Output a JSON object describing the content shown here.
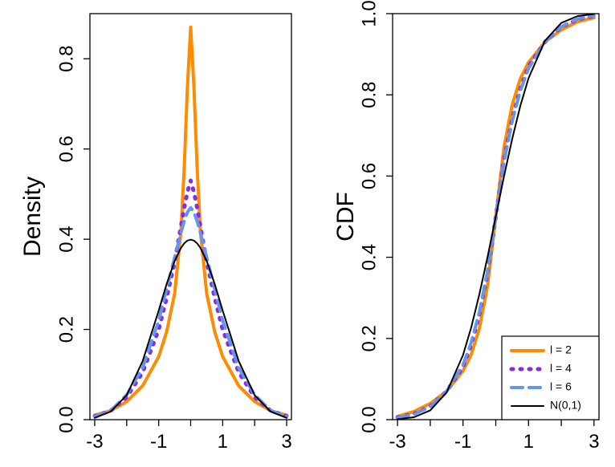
{
  "chart_data": [
    {
      "type": "line",
      "title": "",
      "xlabel": "",
      "ylabel": "Density",
      "xlim": [
        -3.15,
        3.15
      ],
      "ylim": [
        0,
        0.9
      ],
      "xticks": [
        -3,
        -2,
        -1,
        0,
        1,
        2,
        3
      ],
      "xtick_labels": [
        "-3",
        "",
        "-1",
        "",
        "1",
        "",
        "3"
      ],
      "yticks": [
        0.0,
        0.2,
        0.4,
        0.6,
        0.8
      ],
      "ytick_labels": [
        "0.0",
        "0.2",
        "0.4",
        "0.6",
        "0.8"
      ],
      "grid": false,
      "x": [
        -3,
        -2.5,
        -2,
        -1.5,
        -1,
        -0.75,
        -0.5,
        -0.3,
        -0.2,
        -0.1,
        0,
        0.1,
        0.2,
        0.3,
        0.5,
        0.75,
        1,
        1.5,
        2,
        2.5,
        3
      ],
      "series": [
        {
          "name": "l = 2",
          "color": "#FF8C00",
          "dash": "solid",
          "width": 4,
          "values": [
            0.01,
            0.02,
            0.04,
            0.075,
            0.14,
            0.195,
            0.28,
            0.42,
            0.56,
            0.74,
            0.87,
            0.74,
            0.56,
            0.42,
            0.28,
            0.195,
            0.14,
            0.075,
            0.04,
            0.02,
            0.01
          ]
        },
        {
          "name": "l = 4",
          "color": "#8A2BE2",
          "dash": "dotted",
          "width": 5,
          "values": [
            0.008,
            0.02,
            0.05,
            0.105,
            0.2,
            0.27,
            0.35,
            0.43,
            0.47,
            0.505,
            0.53,
            0.505,
            0.47,
            0.43,
            0.35,
            0.27,
            0.2,
            0.105,
            0.05,
            0.02,
            0.008
          ]
        },
        {
          "name": "l = 6",
          "color": "#6495ED",
          "dash": "dashed",
          "width": 4,
          "values": [
            0.007,
            0.02,
            0.055,
            0.115,
            0.22,
            0.29,
            0.36,
            0.415,
            0.44,
            0.46,
            0.47,
            0.46,
            0.44,
            0.415,
            0.36,
            0.29,
            0.22,
            0.115,
            0.055,
            0.02,
            0.007
          ]
        },
        {
          "name": "N(0,1)",
          "color": "#000000",
          "dash": "solid",
          "width": 2,
          "values": [
            0.004,
            0.018,
            0.054,
            0.13,
            0.242,
            0.301,
            0.352,
            0.381,
            0.391,
            0.397,
            0.399,
            0.397,
            0.391,
            0.381,
            0.352,
            0.301,
            0.242,
            0.13,
            0.054,
            0.018,
            0.004
          ]
        }
      ]
    },
    {
      "type": "line",
      "title": "",
      "xlabel": "",
      "ylabel": "CDF",
      "xlim": [
        -3.15,
        3.15
      ],
      "ylim": [
        0,
        1.0
      ],
      "xticks": [
        -3,
        -2,
        -1,
        0,
        1,
        2,
        3
      ],
      "xtick_labels": [
        "-3",
        "",
        "-1",
        "",
        "1",
        "",
        "3"
      ],
      "yticks": [
        0.0,
        0.2,
        0.4,
        0.6,
        0.8,
        1.0
      ],
      "ytick_labels": [
        "0.0",
        "0.2",
        "0.4",
        "0.6",
        "0.8",
        "1.0"
      ],
      "grid": false,
      "legend_position": "bottom-right",
      "x": [
        -3,
        -2.5,
        -2,
        -1.5,
        -1,
        -0.75,
        -0.5,
        -0.25,
        0,
        0.25,
        0.5,
        0.75,
        1,
        1.5,
        2,
        2.5,
        3
      ],
      "series": [
        {
          "name": "l = 2",
          "color": "#FF8C00",
          "dash": "solid",
          "width": 4,
          "values": [
            0.008,
            0.02,
            0.04,
            0.07,
            0.12,
            0.16,
            0.225,
            0.33,
            0.5,
            0.67,
            0.775,
            0.84,
            0.88,
            0.93,
            0.96,
            0.98,
            0.99
          ]
        },
        {
          "name": "l = 4",
          "color": "#8A2BE2",
          "dash": "dotted",
          "width": 5,
          "values": [
            0.006,
            0.014,
            0.033,
            0.07,
            0.13,
            0.185,
            0.26,
            0.36,
            0.5,
            0.64,
            0.74,
            0.815,
            0.87,
            0.93,
            0.967,
            0.986,
            0.994
          ]
        },
        {
          "name": "l = 6",
          "color": "#6495ED",
          "dash": "dashed",
          "width": 4,
          "values": [
            0.005,
            0.013,
            0.032,
            0.07,
            0.135,
            0.19,
            0.265,
            0.365,
            0.5,
            0.635,
            0.735,
            0.81,
            0.865,
            0.93,
            0.968,
            0.987,
            0.995
          ]
        },
        {
          "name": "N(0,1)",
          "color": "#000000",
          "dash": "solid",
          "width": 2,
          "values": [
            0.001,
            0.006,
            0.023,
            0.067,
            0.159,
            0.227,
            0.309,
            0.401,
            0.5,
            0.599,
            0.691,
            0.773,
            0.841,
            0.933,
            0.977,
            0.994,
            0.999
          ]
        }
      ]
    }
  ]
}
